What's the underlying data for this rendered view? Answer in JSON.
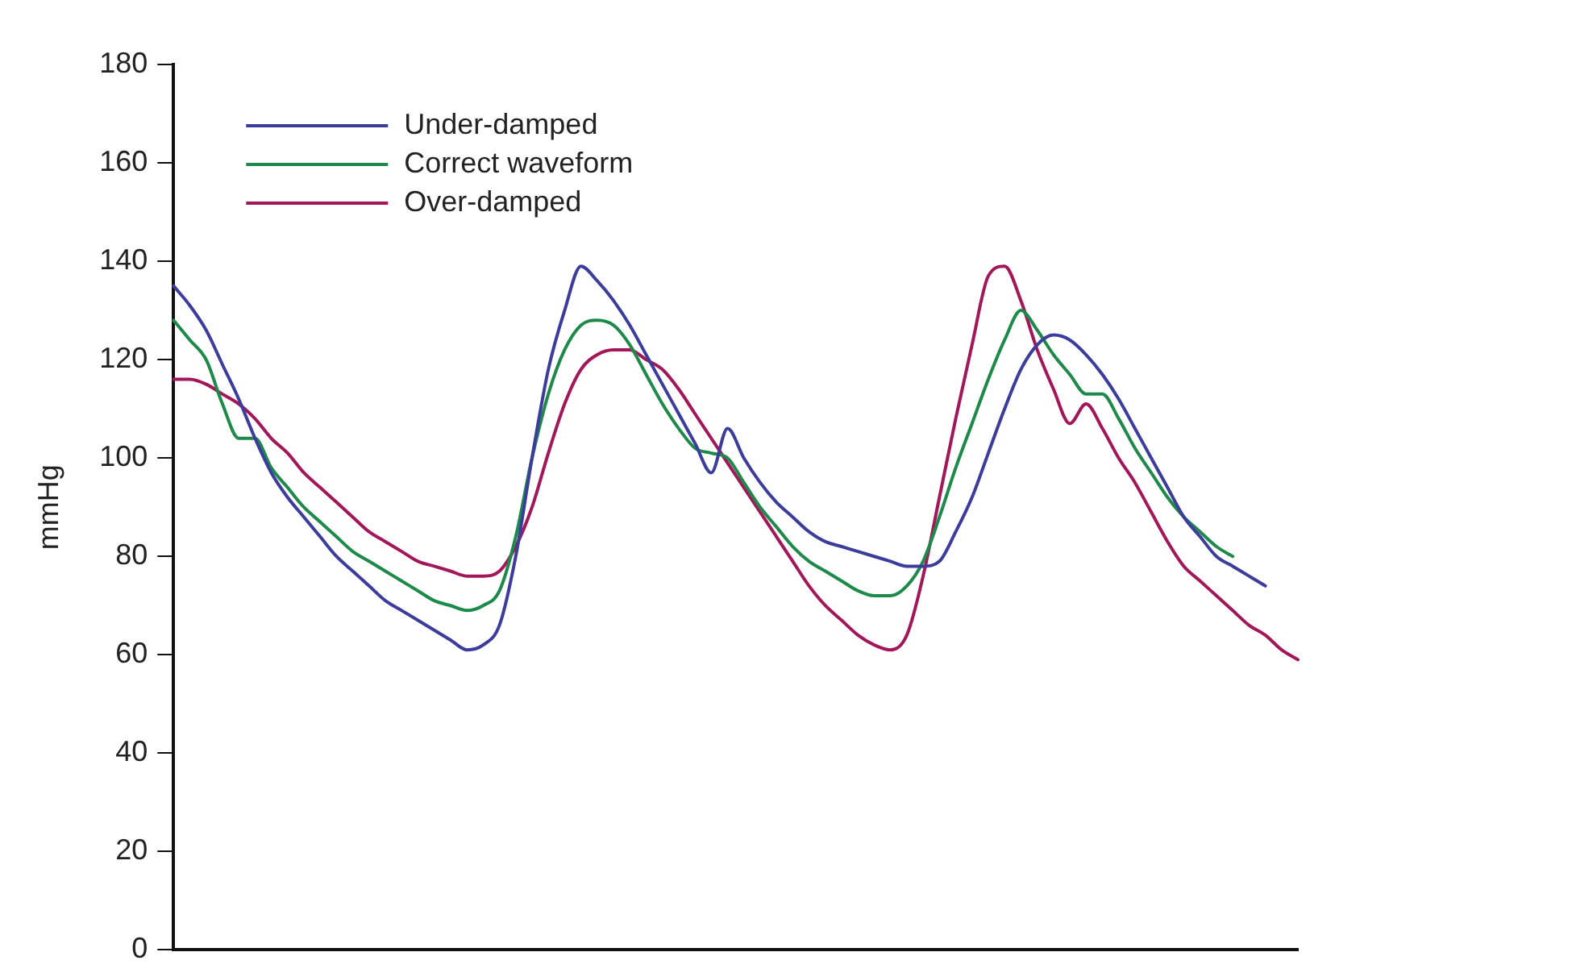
{
  "chart_data": {
    "type": "line",
    "ylabel": "mmHg",
    "categories": [
      null,
      null,
      null,
      null,
      null,
      null,
      null,
      null,
      null,
      null,
      null,
      null,
      null,
      null,
      null,
      null,
      null,
      null,
      null,
      null,
      null,
      null,
      null,
      null,
      null,
      null,
      null,
      null,
      null,
      null,
      null,
      null,
      null,
      null,
      null,
      null,
      null,
      null,
      null,
      null,
      null,
      null,
      null,
      null,
      null,
      null,
      null,
      null,
      null,
      null,
      null,
      null,
      null,
      null,
      null,
      null,
      null,
      null,
      null,
      null,
      null,
      null,
      null,
      null,
      null,
      null,
      null,
      null,
      null,
      null
    ],
    "series": [
      {
        "name": "Under-damped",
        "color": "#3c3c9c",
        "values": [
          135,
          131,
          126,
          119,
          112,
          104,
          97,
          92,
          88,
          84,
          80,
          77,
          74,
          71,
          69,
          67,
          65,
          63,
          61,
          62,
          66,
          80,
          100,
          118,
          130,
          139,
          136,
          132,
          127,
          121,
          115,
          109,
          103,
          97,
          106,
          100,
          95,
          91,
          88,
          85,
          83,
          82,
          81,
          80,
          79,
          78,
          78,
          79,
          85,
          92,
          101,
          110,
          118,
          123,
          125,
          124,
          121,
          117,
          112,
          106,
          100,
          94,
          88,
          84,
          80,
          78,
          76,
          74,
          null,
          null
        ]
      },
      {
        "name": "Correct waveform",
        "color": "#1e8a4a",
        "values": [
          128,
          124,
          120,
          111,
          104,
          104,
          98,
          94,
          90,
          87,
          84,
          81,
          79,
          77,
          75,
          73,
          71,
          70,
          69,
          70,
          73,
          84,
          100,
          113,
          122,
          127,
          128,
          127,
          123,
          117,
          111,
          106,
          102,
          101,
          100,
          95,
          90,
          86,
          82,
          79,
          77,
          75,
          73,
          72,
          72,
          74,
          79,
          88,
          98,
          107,
          116,
          124,
          130,
          126,
          121,
          117,
          113,
          113,
          108,
          102,
          97,
          92,
          88,
          85,
          82,
          80,
          null,
          null,
          null,
          null
        ]
      },
      {
        "name": "Over-damped",
        "color": "#a3165a",
        "values": [
          116,
          116,
          115,
          113,
          111,
          108,
          104,
          101,
          97,
          94,
          91,
          88,
          85,
          83,
          81,
          79,
          78,
          77,
          76,
          76,
          77,
          82,
          90,
          101,
          111,
          118,
          121,
          122,
          122,
          120,
          118,
          114,
          109,
          104,
          99,
          94,
          89,
          84,
          79,
          74,
          70,
          67,
          64,
          62,
          61,
          64,
          76,
          92,
          108,
          123,
          137,
          139,
          132,
          122,
          114,
          107,
          111,
          106,
          100,
          95,
          89,
          83,
          78,
          75,
          72,
          69,
          66,
          64,
          61,
          59
        ]
      }
    ],
    "ylim": [
      0,
      180
    ],
    "yticks": [
      0,
      20,
      40,
      60,
      80,
      100,
      120,
      140,
      160,
      180
    ],
    "grid": false,
    "legend": "top left",
    "marker": "none",
    "line_style": "solid",
    "tick_labels": "y"
  }
}
